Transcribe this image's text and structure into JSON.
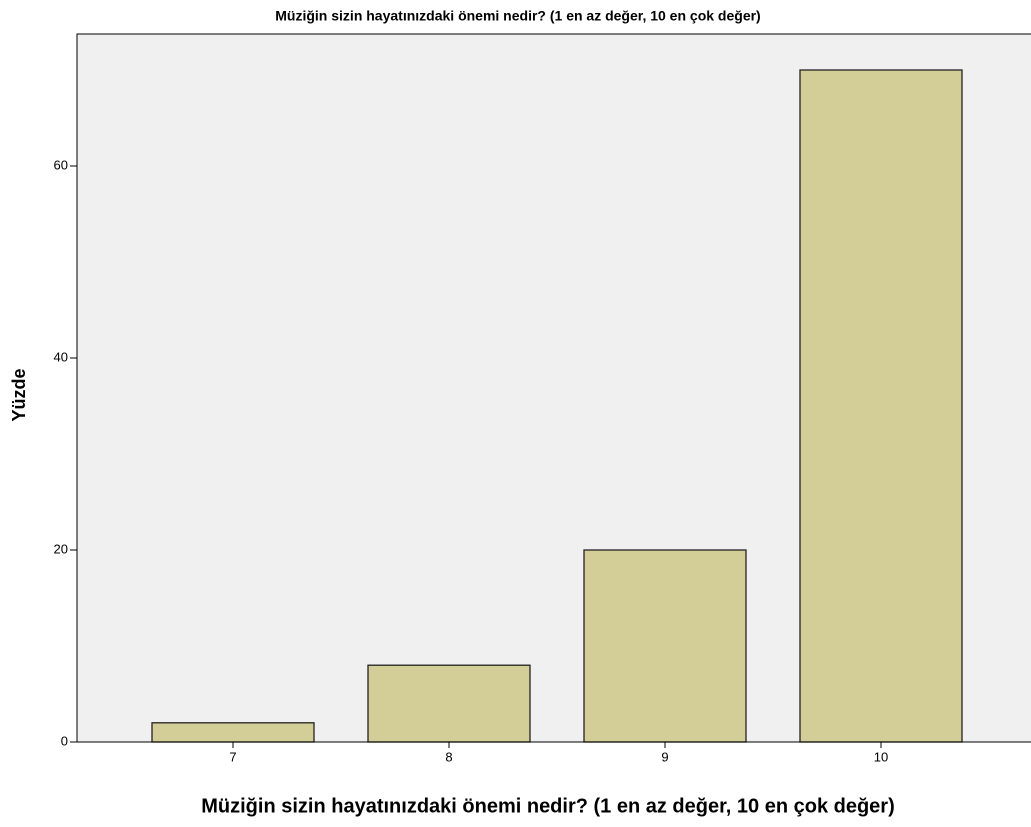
{
  "chart_data": {
    "type": "bar",
    "title": "Müziğin sizin hayatınızdaki önemi nedir?  (1 en az değer, 10 en çok değer)",
    "x_label": "Müziğin sizin hayatınızdaki önemi nedir?  (1 en az değer, 10 en çok değer)",
    "y_label": "Yüzde",
    "categories": [
      "7",
      "8",
      "9",
      "10"
    ],
    "values": [
      2,
      8,
      20,
      70
    ],
    "color": "#d3ce97",
    "ylim": [
      0,
      73.75
    ],
    "yticks": [
      0,
      20,
      40,
      60
    ],
    "grid": false
  }
}
